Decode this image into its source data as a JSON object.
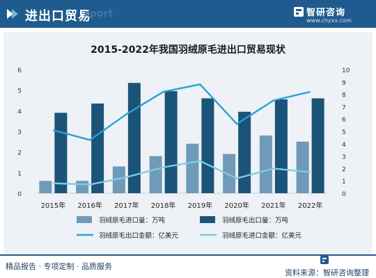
{
  "header": {
    "title": "进出口贸易",
    "watermark": "xport",
    "logo_name": "智研咨询",
    "logo_url": "www.chyxx.com"
  },
  "footer": {
    "left": "精品报告 · 专项定制 · 品质服务",
    "right": "资料来源：智研咨询整理"
  },
  "colors": {
    "header_bg": "#1f5b8f",
    "import_bar": "#6f9ab8",
    "export_bar": "#1b5478",
    "export_line": "#27a1d4",
    "import_line": "#7ecbea"
  },
  "chart_data": {
    "type": "bar",
    "title": "2015-2022年我国羽绒原毛进出口贸易现状",
    "categories": [
      "2015年",
      "2016年",
      "2017年",
      "2018年",
      "2019年",
      "2020年",
      "2021年",
      "2022年"
    ],
    "y_left": {
      "lim": [
        0,
        6
      ],
      "ticks": [
        "0",
        "1",
        "2",
        "3",
        "4",
        "5",
        "6"
      ]
    },
    "y_right": {
      "lim": [
        0,
        10
      ],
      "ticks": [
        "0",
        "1",
        "2",
        "3",
        "4",
        "5",
        "6",
        "7",
        "8",
        "9",
        "10"
      ]
    },
    "series": [
      {
        "name": "羽绒原毛进口量：万吨",
        "kind": "bar",
        "axis": "left",
        "values": [
          0.6,
          0.6,
          1.3,
          1.8,
          2.4,
          1.9,
          2.8,
          2.5
        ]
      },
      {
        "name": "羽绒原毛出口量：万吨",
        "kind": "bar",
        "axis": "left",
        "values": [
          3.9,
          4.35,
          5.35,
          4.95,
          4.6,
          3.95,
          4.55,
          4.6
        ]
      },
      {
        "name": "羽绒原毛出口金额：亿美元",
        "kind": "line",
        "axis": "right",
        "values": [
          5.1,
          4.3,
          6.4,
          8.2,
          8.8,
          5.6,
          7.5,
          8.2
        ]
      },
      {
        "name": "羽绒原毛进口金额：亿美元",
        "kind": "line",
        "axis": "right",
        "values": [
          0.8,
          0.7,
          1.3,
          2.1,
          2.6,
          1.2,
          2.0,
          1.7
        ]
      }
    ],
    "grid": false,
    "legend_position": "bottom"
  }
}
